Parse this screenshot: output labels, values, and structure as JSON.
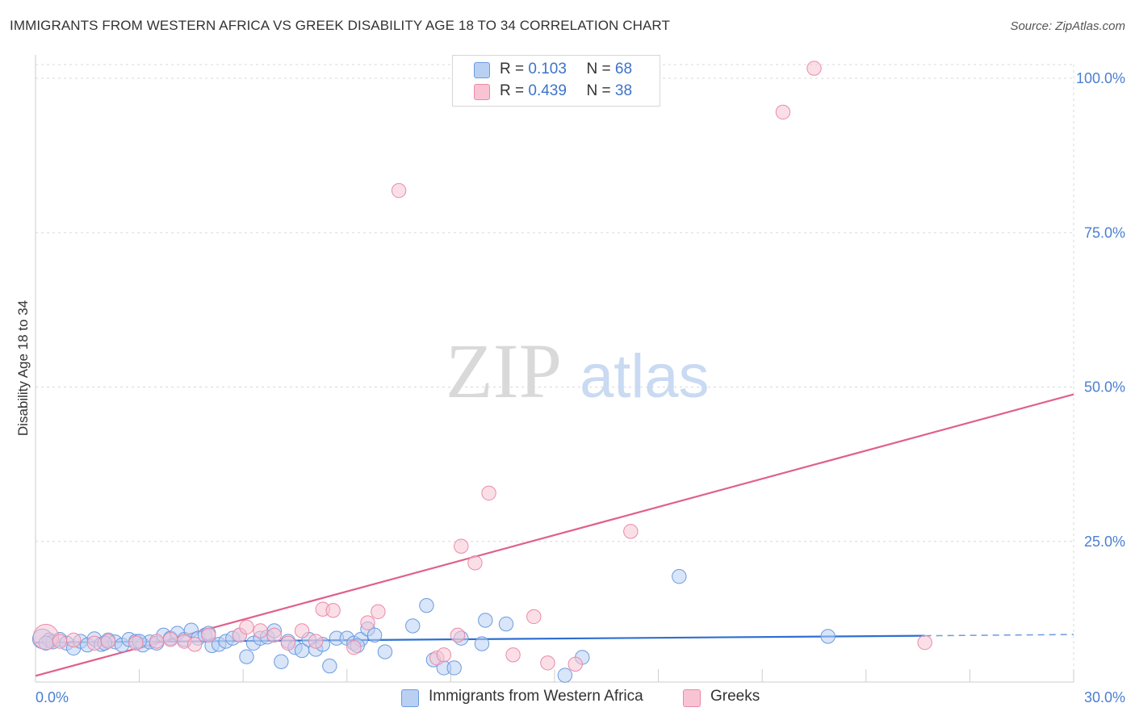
{
  "title": "IMMIGRANTS FROM WESTERN AFRICA VS GREEK DISABILITY AGE 18 TO 34 CORRELATION CHART",
  "source": "Source: ZipAtlas.com",
  "watermark": {
    "zip": "ZIP",
    "atlas": "atlas"
  },
  "legend": {
    "r_label": "R =",
    "n_label": "N =",
    "rows": [
      {
        "name": "Immigrants from Western Africa",
        "r": "0.103",
        "n": "68",
        "fill": "#b9d0f3",
        "stroke": "#6b9be0"
      },
      {
        "name": "Greeks",
        "r": "0.439",
        "n": "38",
        "fill": "#f8c4d4",
        "stroke": "#ea8aa8"
      }
    ]
  },
  "chart_data": {
    "type": "scatter",
    "title": "IMMIGRANTS FROM WESTERN AFRICA VS GREEK DISABILITY AGE 18 TO 34 CORRELATION CHART",
    "xlabel": "",
    "ylabel": "Disability Age 18 to 34",
    "xlim": [
      0,
      30
    ],
    "ylim": [
      0,
      100
    ],
    "x_tick_labels": [
      "0.0%",
      "30.0%"
    ],
    "y_ticks": [
      25,
      50,
      75,
      100
    ],
    "y_tick_labels": [
      "25.0%",
      "50.0%",
      "75.0%",
      "100.0%"
    ],
    "grid": true,
    "series": [
      {
        "name": "Immigrants from Western Africa",
        "color": "#6b9be0",
        "fill": "#b9d0f3",
        "trend": {
          "x0": 0,
          "y0": 6.4,
          "x1": 25.7,
          "y1": 7.5,
          "dash_to_x": 30,
          "dash_to_y": 7.7,
          "color": "#2f6fd1"
        },
        "points": [
          [
            0.2,
            7.0
          ],
          [
            0.4,
            6.8
          ],
          [
            0.5,
            6.5
          ],
          [
            0.7,
            6.9
          ],
          [
            0.9,
            6.3
          ],
          [
            1.1,
            5.5
          ],
          [
            1.3,
            6.6
          ],
          [
            1.5,
            6.0
          ],
          [
            1.7,
            7.0
          ],
          [
            1.9,
            6.1
          ],
          [
            2.1,
            6.8
          ],
          [
            2.3,
            6.5
          ],
          [
            2.5,
            6.0
          ],
          [
            2.7,
            6.9
          ],
          [
            2.9,
            6.6
          ],
          [
            3.1,
            6.0
          ],
          [
            3.3,
            6.5
          ],
          [
            3.5,
            6.3
          ],
          [
            3.7,
            7.6
          ],
          [
            3.9,
            7.1
          ],
          [
            4.1,
            7.9
          ],
          [
            4.3,
            6.9
          ],
          [
            4.5,
            8.4
          ],
          [
            4.7,
            7.1
          ],
          [
            4.9,
            7.6
          ],
          [
            5.1,
            5.9
          ],
          [
            5.3,
            6.1
          ],
          [
            5.5,
            6.6
          ],
          [
            5.7,
            7.1
          ],
          [
            5.9,
            7.6
          ],
          [
            6.1,
            4.1
          ],
          [
            6.3,
            6.3
          ],
          [
            6.5,
            7.1
          ],
          [
            6.7,
            7.3
          ],
          [
            6.9,
            8.3
          ],
          [
            7.1,
            3.3
          ],
          [
            7.3,
            6.6
          ],
          [
            7.5,
            5.6
          ],
          [
            7.7,
            5.1
          ],
          [
            7.9,
            6.9
          ],
          [
            8.1,
            5.3
          ],
          [
            8.3,
            6.1
          ],
          [
            8.5,
            2.6
          ],
          [
            8.7,
            7.1
          ],
          [
            9.0,
            7.1
          ],
          [
            9.2,
            6.3
          ],
          [
            9.4,
            6.9
          ],
          [
            9.6,
            8.6
          ],
          [
            9.8,
            7.6
          ],
          [
            10.1,
            4.9
          ],
          [
            10.9,
            9.1
          ],
          [
            11.3,
            12.4
          ],
          [
            11.5,
            3.6
          ],
          [
            11.8,
            2.3
          ],
          [
            12.1,
            2.3
          ],
          [
            12.3,
            7.1
          ],
          [
            12.9,
            6.2
          ],
          [
            13.0,
            10.0
          ],
          [
            13.6,
            9.4
          ],
          [
            15.3,
            1.1
          ],
          [
            15.8,
            4.0
          ],
          [
            18.6,
            17.1
          ],
          [
            22.9,
            7.4
          ],
          [
            0.3,
            6.3
          ],
          [
            2.0,
            6.3
          ],
          [
            3.0,
            6.6
          ],
          [
            5.0,
            7.9
          ],
          [
            9.3,
            5.9
          ]
        ],
        "sizes": [
          14,
          10,
          10,
          10,
          10,
          10,
          10,
          10,
          10,
          10,
          10,
          10,
          10,
          10,
          10,
          10,
          10,
          10,
          10,
          10,
          10,
          10,
          10,
          10,
          10,
          10,
          10,
          10,
          10,
          10,
          10,
          10,
          10,
          10,
          10,
          10,
          10,
          10,
          10,
          10,
          10,
          10,
          10,
          10,
          10,
          10,
          10,
          10,
          10,
          10,
          10,
          10,
          10,
          10,
          10,
          10,
          10,
          10,
          10,
          10,
          10,
          10,
          10,
          10,
          10,
          10,
          10,
          10
        ]
      },
      {
        "name": "Greeks",
        "color": "#ea8aa8",
        "fill": "#f8c4d4",
        "trend": {
          "x0": 0,
          "y0": 1.0,
          "x1": 30,
          "y1": 46.6,
          "color": "#e0608c"
        },
        "points": [
          [
            0.3,
            7.3
          ],
          [
            0.7,
            6.6
          ],
          [
            1.1,
            6.8
          ],
          [
            1.7,
            6.3
          ],
          [
            2.1,
            6.6
          ],
          [
            2.9,
            6.3
          ],
          [
            3.5,
            6.6
          ],
          [
            3.9,
            6.9
          ],
          [
            4.3,
            6.6
          ],
          [
            4.6,
            6.1
          ],
          [
            5.0,
            7.6
          ],
          [
            5.9,
            7.6
          ],
          [
            6.1,
            8.9
          ],
          [
            6.5,
            8.3
          ],
          [
            6.9,
            7.6
          ],
          [
            7.3,
            6.3
          ],
          [
            7.7,
            8.3
          ],
          [
            8.1,
            6.6
          ],
          [
            8.3,
            11.8
          ],
          [
            8.6,
            11.6
          ],
          [
            9.2,
            5.6
          ],
          [
            9.6,
            9.6
          ],
          [
            9.9,
            11.4
          ],
          [
            10.5,
            79.6
          ],
          [
            11.6,
            3.9
          ],
          [
            11.8,
            4.4
          ],
          [
            12.2,
            7.6
          ],
          [
            12.3,
            22.0
          ],
          [
            12.7,
            19.3
          ],
          [
            13.1,
            30.6
          ],
          [
            13.8,
            4.4
          ],
          [
            14.4,
            10.6
          ],
          [
            14.8,
            3.1
          ],
          [
            15.6,
            2.9
          ],
          [
            17.2,
            24.4
          ],
          [
            21.6,
            92.3
          ],
          [
            22.5,
            99.4
          ],
          [
            25.7,
            6.4
          ]
        ],
        "sizes": [
          18,
          10,
          10,
          10,
          10,
          10,
          10,
          10,
          10,
          10,
          10,
          10,
          10,
          10,
          10,
          10,
          10,
          10,
          10,
          10,
          10,
          10,
          10,
          10,
          10,
          10,
          10,
          10,
          10,
          10,
          10,
          10,
          10,
          10,
          10,
          10,
          10,
          10
        ]
      }
    ]
  }
}
